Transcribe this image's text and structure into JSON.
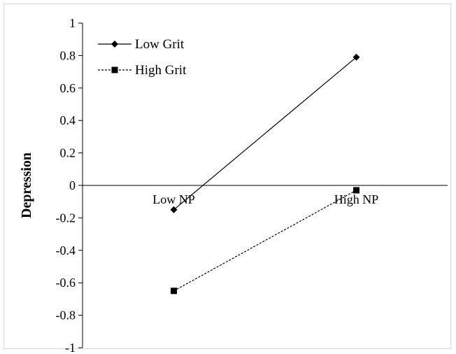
{
  "chart_data": {
    "type": "line",
    "title": "",
    "xlabel": "",
    "ylabel": "Depression",
    "categories": [
      "Low NP",
      "High NP"
    ],
    "ylim": [
      -1,
      1
    ],
    "ytick_step": 0.2,
    "grid": false,
    "legend_position": "top-left",
    "series": [
      {
        "name": "Low Grit",
        "values": [
          -0.15,
          0.79
        ],
        "marker": "diamond",
        "line_style": "solid",
        "color": "#000000"
      },
      {
        "name": "High Grit",
        "values": [
          -0.65,
          -0.03
        ],
        "marker": "square",
        "line_style": "dashed",
        "color": "#000000"
      }
    ]
  }
}
